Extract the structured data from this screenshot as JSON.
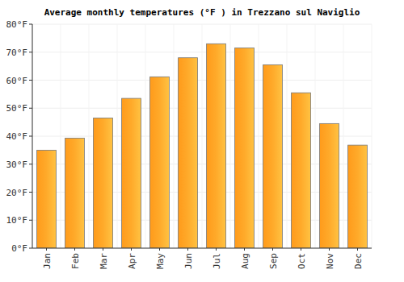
{
  "chart_data": {
    "type": "bar",
    "title": "Average monthly temperatures (°F ) in Trezzano sul Naviglio",
    "categories": [
      "Jan",
      "Feb",
      "Mar",
      "Apr",
      "May",
      "Jun",
      "Jul",
      "Aug",
      "Sep",
      "Oct",
      "Nov",
      "Dec"
    ],
    "values": [
      35,
      39.3,
      46.5,
      53.5,
      61.2,
      68,
      73,
      71.5,
      65.5,
      55.5,
      44.5,
      36.8
    ],
    "color": "#ffaa2a",
    "ylim": [
      0,
      80
    ],
    "yticks": [
      {
        "value": 0,
        "label": "0°F"
      },
      {
        "value": 10,
        "label": "10°F"
      },
      {
        "value": 20,
        "label": "20°F"
      },
      {
        "value": 30,
        "label": "30°F"
      },
      {
        "value": 40,
        "label": "40°F"
      },
      {
        "value": 50,
        "label": "50°F"
      },
      {
        "value": 60,
        "label": "60°F"
      },
      {
        "value": 70,
        "label": "70°F"
      },
      {
        "value": 80,
        "label": "80°F"
      }
    ],
    "grid": true
  }
}
